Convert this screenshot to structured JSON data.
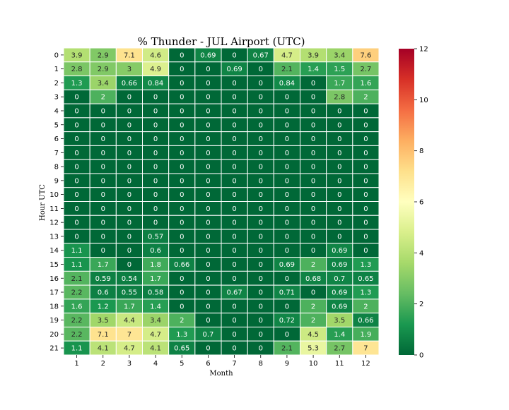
{
  "chart_data": {
    "type": "heatmap",
    "title": "% Thunder - JUL Airport (UTC)",
    "xlabel": "Month",
    "ylabel": "Hour UTC",
    "x": [
      "1",
      "2",
      "3",
      "4",
      "5",
      "6",
      "7",
      "8",
      "9",
      "10",
      "11",
      "12"
    ],
    "y": [
      "0",
      "1",
      "2",
      "3",
      "4",
      "5",
      "6",
      "7",
      "8",
      "9",
      "10",
      "11",
      "12",
      "13",
      "14",
      "15",
      "16",
      "17",
      "18",
      "19",
      "20",
      "21"
    ],
    "values": [
      [
        "3.9",
        "2.9",
        "7.1",
        "4.6",
        "0",
        "0.69",
        "0",
        "0.67",
        "4.7",
        "3.9",
        "3.4",
        "7.6"
      ],
      [
        "2.8",
        "2.9",
        "3",
        "4.9",
        "0",
        "0",
        "0.69",
        "0",
        "2.1",
        "1.4",
        "1.5",
        "2.7"
      ],
      [
        "1.3",
        "3.4",
        "0.66",
        "0.84",
        "0",
        "0",
        "0",
        "0",
        "0.84",
        "0",
        "1.7",
        "1.6"
      ],
      [
        "0",
        "2",
        "0",
        "0",
        "0",
        "0",
        "0",
        "0",
        "0",
        "0",
        "2.8",
        "2"
      ],
      [
        "0",
        "0",
        "0",
        "0",
        "0",
        "0",
        "0",
        "0",
        "0",
        "0",
        "0",
        "0"
      ],
      [
        "0",
        "0",
        "0",
        "0",
        "0",
        "0",
        "0",
        "0",
        "0",
        "0",
        "0",
        "0"
      ],
      [
        "0",
        "0",
        "0",
        "0",
        "0",
        "0",
        "0",
        "0",
        "0",
        "0",
        "0",
        "0"
      ],
      [
        "0",
        "0",
        "0",
        "0",
        "0",
        "0",
        "0",
        "0",
        "0",
        "0",
        "0",
        "0"
      ],
      [
        "0",
        "0",
        "0",
        "0",
        "0",
        "0",
        "0",
        "0",
        "0",
        "0",
        "0",
        "0"
      ],
      [
        "0",
        "0",
        "0",
        "0",
        "0",
        "0",
        "0",
        "0",
        "0",
        "0",
        "0",
        "0"
      ],
      [
        "0",
        "0",
        "0",
        "0",
        "0",
        "0",
        "0",
        "0",
        "0",
        "0",
        "0",
        "0"
      ],
      [
        "0",
        "0",
        "0",
        "0",
        "0",
        "0",
        "0",
        "0",
        "0",
        "0",
        "0",
        "0"
      ],
      [
        "0",
        "0",
        "0",
        "0",
        "0",
        "0",
        "0",
        "0",
        "0",
        "0",
        "0",
        "0"
      ],
      [
        "0",
        "0",
        "0",
        "0.57",
        "0",
        "0",
        "0",
        "0",
        "0",
        "0",
        "0",
        "0"
      ],
      [
        "1.1",
        "0",
        "0",
        "0.6",
        "0",
        "0",
        "0",
        "0",
        "0",
        "0",
        "0.69",
        "0"
      ],
      [
        "1.1",
        "1.7",
        "0",
        "1.8",
        "0.66",
        "0",
        "0",
        "0",
        "0.69",
        "2",
        "0.69",
        "1.3"
      ],
      [
        "2.1",
        "0.59",
        "0.54",
        "1.7",
        "0",
        "0",
        "0",
        "0",
        "0",
        "0.68",
        "0.7",
        "0.65"
      ],
      [
        "2.2",
        "0.6",
        "0.55",
        "0.58",
        "0",
        "0",
        "0.67",
        "0",
        "0.71",
        "0",
        "0.69",
        "1.3"
      ],
      [
        "1.6",
        "1.2",
        "1.7",
        "1.4",
        "0",
        "0",
        "0",
        "0",
        "0",
        "2",
        "0.69",
        "2"
      ],
      [
        "2.2",
        "3.5",
        "4.4",
        "3.4",
        "2",
        "0",
        "0",
        "0",
        "0.72",
        "2",
        "3.5",
        "0.66"
      ],
      [
        "2.2",
        "7.1",
        "7",
        "4.7",
        "1.3",
        "0.7",
        "0",
        "0",
        "0",
        "4.5",
        "1.4",
        "1.9"
      ],
      [
        "1.1",
        "4.1",
        "4.7",
        "4.1",
        "0.65",
        "0",
        "0",
        "0",
        "2.1",
        "5.3",
        "2.7",
        "7"
      ]
    ],
    "colorbar": {
      "range": [
        0,
        12
      ],
      "ticks": [
        "0",
        "2",
        "4",
        "6",
        "8",
        "10",
        "12"
      ],
      "colormap": "RdYlGn_r",
      "stops": [
        "#006837",
        "#1a9850",
        "#66bd63",
        "#a6d96a",
        "#d9ef8b",
        "#ffffbf",
        "#fee08b",
        "#fdae61",
        "#f46d43",
        "#d73027",
        "#a50026"
      ]
    },
    "cell_border_color": "#ffffff",
    "grid": false
  }
}
